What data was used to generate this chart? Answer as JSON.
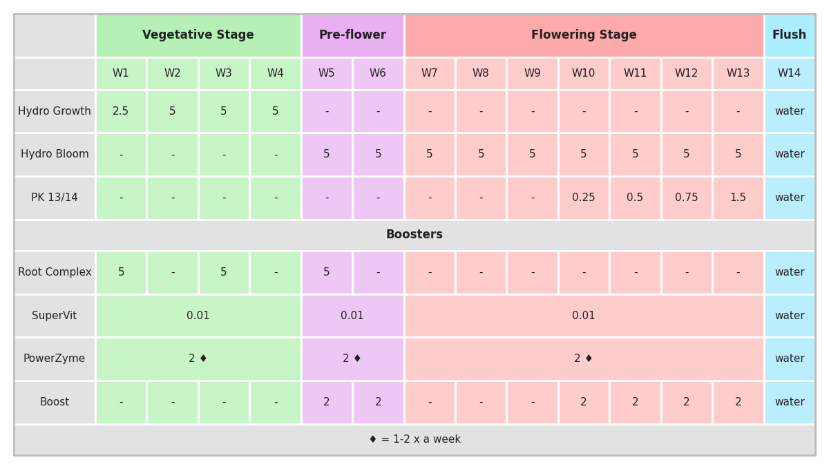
{
  "stage_headers": [
    {
      "label": "Vegetative Stage",
      "col_span": [
        1,
        2,
        3,
        4
      ],
      "color": "#b5f0b5"
    },
    {
      "label": "Pre-flower",
      "col_span": [
        5,
        6
      ],
      "color": "#e8b0f0"
    },
    {
      "label": "Flowering Stage",
      "col_span": [
        7,
        8,
        9,
        10,
        11,
        12,
        13
      ],
      "color": "#ffaaaa"
    },
    {
      "label": "Flush",
      "col_span": [
        14
      ],
      "color": "#aaeeff"
    }
  ],
  "week_headers": [
    "W1",
    "W2",
    "W3",
    "W4",
    "W5",
    "W6",
    "W7",
    "W8",
    "W9",
    "W10",
    "W11",
    "W12",
    "W13",
    "W14"
  ],
  "week_bg": [
    "#c8f5c8",
    "#c8f5c8",
    "#c8f5c8",
    "#c8f5c8",
    "#eec8f5",
    "#eec8f5",
    "#ffcccc",
    "#ffcccc",
    "#ffcccc",
    "#ffcccc",
    "#ffcccc",
    "#ffcccc",
    "#ffcccc",
    "#bbeefc"
  ],
  "boosters_label": "Boosters",
  "footnote": "♦ = 1-2 x a week",
  "rows": [
    {
      "label": "Hydro Growth",
      "cells": [
        "2.5",
        "5",
        "5",
        "5",
        "-",
        "-",
        "-",
        "-",
        "-",
        "-",
        "-",
        "-",
        "-",
        "water"
      ],
      "cell_bg": [
        "#c8f5c8",
        "#c8f5c8",
        "#c8f5c8",
        "#c8f5c8",
        "#eec8f5",
        "#eec8f5",
        "#ffcccc",
        "#ffcccc",
        "#ffcccc",
        "#ffcccc",
        "#ffcccc",
        "#ffcccc",
        "#ffcccc",
        "#bbeefc"
      ],
      "merged_groups": null
    },
    {
      "label": "Hydro Bloom",
      "cells": [
        "-",
        "-",
        "-",
        "-",
        "5",
        "5",
        "5",
        "5",
        "5",
        "5",
        "5",
        "5",
        "5",
        "water"
      ],
      "cell_bg": [
        "#c8f5c8",
        "#c8f5c8",
        "#c8f5c8",
        "#c8f5c8",
        "#eec8f5",
        "#eec8f5",
        "#ffcccc",
        "#ffcccc",
        "#ffcccc",
        "#ffcccc",
        "#ffcccc",
        "#ffcccc",
        "#ffcccc",
        "#bbeefc"
      ],
      "merged_groups": null
    },
    {
      "label": "PK 13/14",
      "cells": [
        "-",
        "-",
        "-",
        "-",
        "-",
        "-",
        "-",
        "-",
        "-",
        "0.25",
        "0.5",
        "0.75",
        "1.5",
        "water"
      ],
      "cell_bg": [
        "#c8f5c8",
        "#c8f5c8",
        "#c8f5c8",
        "#c8f5c8",
        "#eec8f5",
        "#eec8f5",
        "#ffcccc",
        "#ffcccc",
        "#ffcccc",
        "#ffcccc",
        "#ffcccc",
        "#ffcccc",
        "#ffcccc",
        "#bbeefc"
      ],
      "merged_groups": null
    },
    {
      "label": "Root Complex",
      "cells": [
        "5",
        "-",
        "5",
        "-",
        "5",
        "-",
        "-",
        "-",
        "-",
        "-",
        "-",
        "-",
        "-",
        "water"
      ],
      "cell_bg": [
        "#c8f5c8",
        "#c8f5c8",
        "#c8f5c8",
        "#c8f5c8",
        "#eec8f5",
        "#eec8f5",
        "#ffcccc",
        "#ffcccc",
        "#ffcccc",
        "#ffcccc",
        "#ffcccc",
        "#ffcccc",
        "#ffcccc",
        "#bbeefc"
      ],
      "merged_groups": null
    },
    {
      "label": "SuperVit",
      "cells": null,
      "cell_bg": null,
      "merged_groups": [
        {
          "cols": [
            1,
            2,
            3,
            4
          ],
          "text": "0.01",
          "color": "#c8f5c8"
        },
        {
          "cols": [
            5,
            6
          ],
          "text": "0.01",
          "color": "#eec8f5"
        },
        {
          "cols": [
            7,
            8,
            9,
            10,
            11,
            12,
            13
          ],
          "text": "0.01",
          "color": "#ffcccc"
        },
        {
          "cols": [
            14
          ],
          "text": "water",
          "color": "#bbeefc"
        }
      ]
    },
    {
      "label": "PowerZyme",
      "cells": null,
      "cell_bg": null,
      "merged_groups": [
        {
          "cols": [
            1,
            2,
            3,
            4
          ],
          "text": "2 ♦",
          "color": "#c8f5c8"
        },
        {
          "cols": [
            5,
            6
          ],
          "text": "2 ♦",
          "color": "#eec8f5"
        },
        {
          "cols": [
            7,
            8,
            9,
            10,
            11,
            12,
            13
          ],
          "text": "2 ♦",
          "color": "#ffcccc"
        },
        {
          "cols": [
            14
          ],
          "text": "water",
          "color": "#bbeefc"
        }
      ]
    },
    {
      "label": "Boost",
      "cells": [
        "-",
        "-",
        "-",
        "-",
        "2",
        "2",
        "-",
        "-",
        "-",
        "2",
        "2",
        "2",
        "2",
        "water"
      ],
      "cell_bg": [
        "#c8f5c8",
        "#c8f5c8",
        "#c8f5c8",
        "#c8f5c8",
        "#eec8f5",
        "#eec8f5",
        "#ffcccc",
        "#ffcccc",
        "#ffcccc",
        "#ffcccc",
        "#ffcccc",
        "#ffcccc",
        "#ffcccc",
        "#bbeefc"
      ],
      "merged_groups": null
    }
  ],
  "label_col_color": "#e2e2e2",
  "gray_bg": "#e2e2e2",
  "border_color": "#ffffff",
  "text_color": "#222222",
  "font_size": 11,
  "bold_font_size": 12
}
